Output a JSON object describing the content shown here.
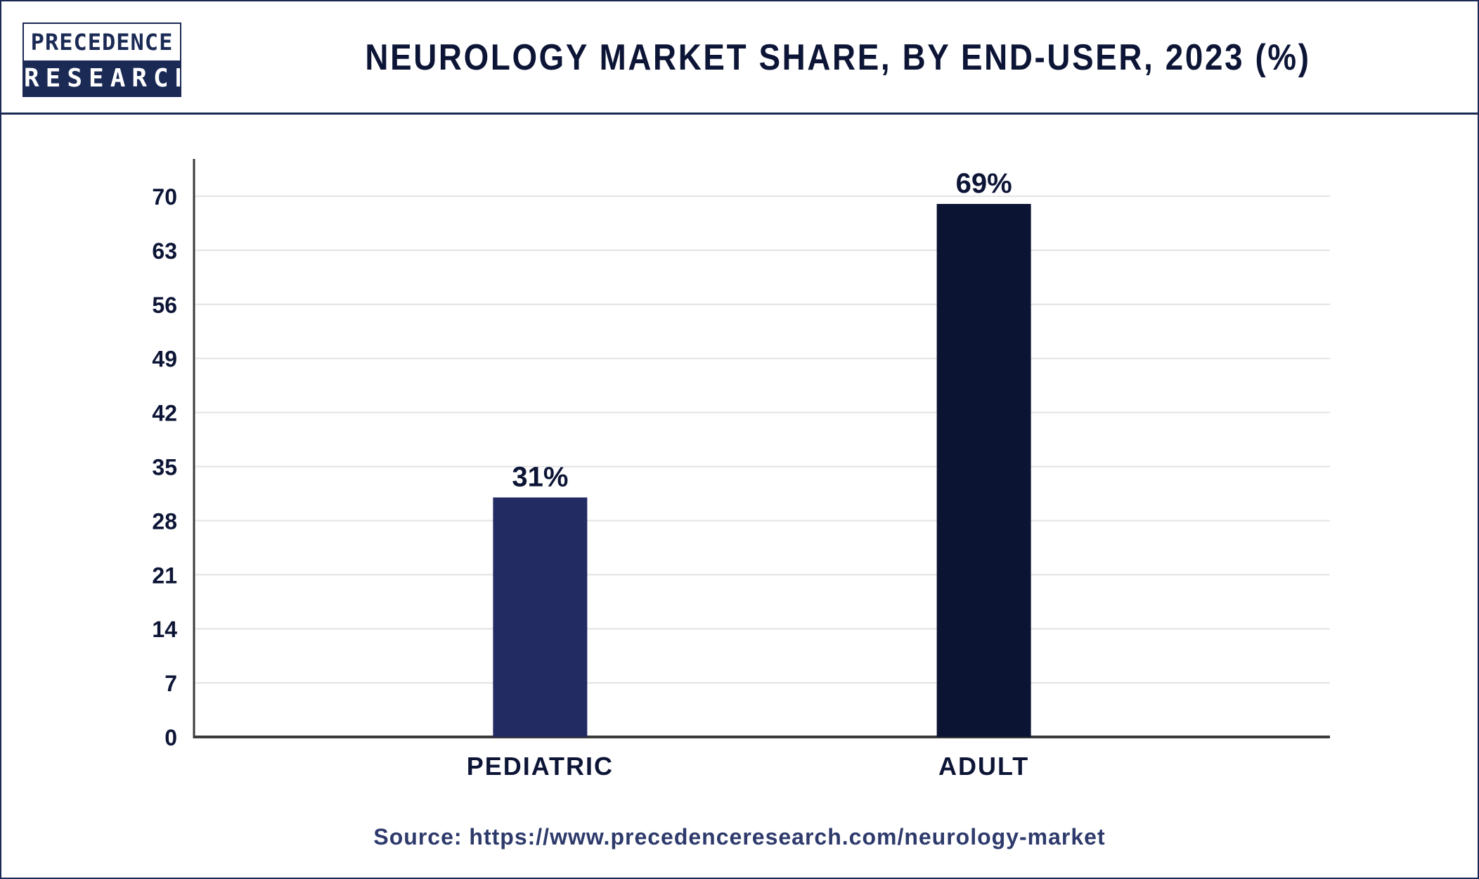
{
  "header": {
    "logo_line1": "PRECEDENCE",
    "logo_line2": "RESEARCH",
    "title": "NEUROLOGY MARKET SHARE, BY END-USER, 2023 (%)"
  },
  "chart_data": {
    "type": "bar",
    "categories": [
      "PEDIATRIC",
      "ADULT"
    ],
    "values": [
      31,
      69
    ],
    "value_labels": [
      "31%",
      "69%"
    ],
    "bar_colors": [
      "#232b63",
      "#0c1433"
    ],
    "yticks": [
      0,
      7,
      14,
      21,
      28,
      35,
      42,
      49,
      56,
      63,
      70
    ],
    "ylim": [
      0,
      70
    ],
    "grid": true,
    "title": "NEUROLOGY MARKET SHARE, BY END-USER, 2023 (%)",
    "xlabel": "",
    "ylabel": ""
  },
  "footer": {
    "source": "Source: https://www.precedenceresearch.com/neurology-market"
  },
  "colors": {
    "brand": "#1b2a55",
    "text": "#0d1536",
    "grid": "#e3e3e3",
    "axis": "#3a3a3a"
  }
}
